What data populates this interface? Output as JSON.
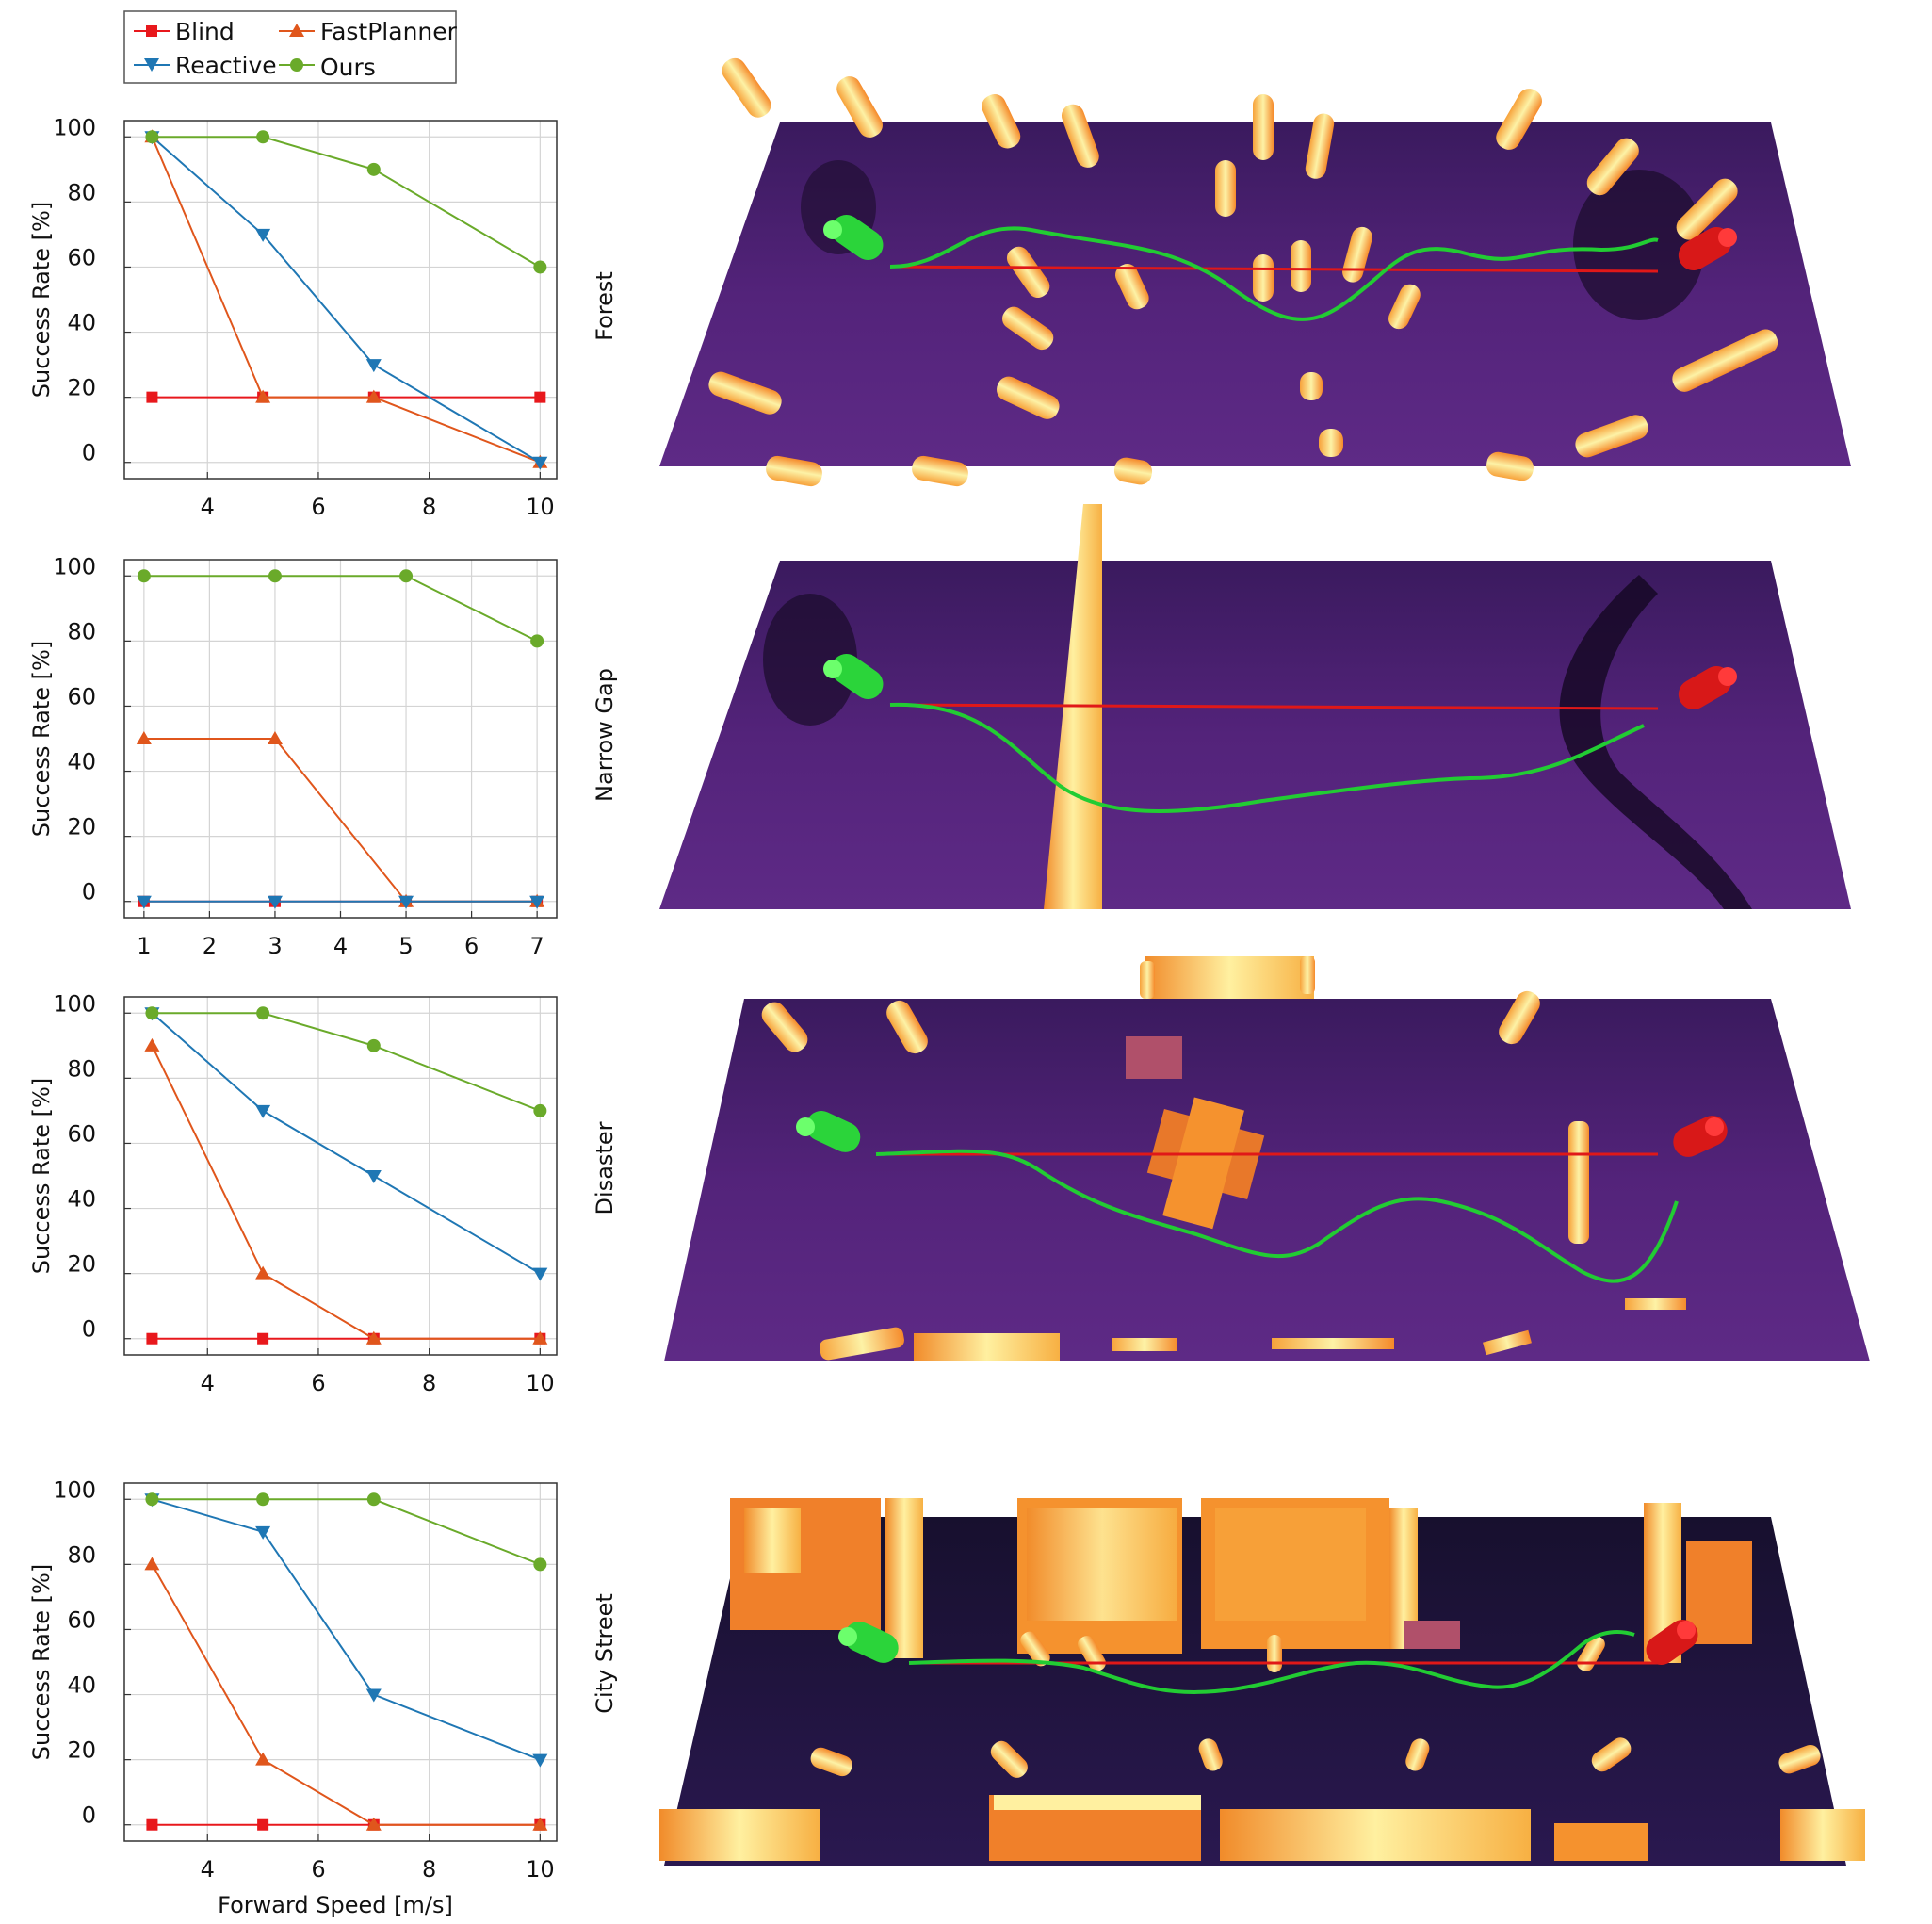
{
  "legend": [
    {
      "name": "Blind",
      "color": "#e8181c",
      "marker": "square"
    },
    {
      "name": "FastPlanner",
      "color": "#e0561c",
      "marker": "triangle-up"
    },
    {
      "name": "Reactive",
      "color": "#1f77b4",
      "marker": "triangle-down"
    },
    {
      "name": "Ours",
      "color": "#6aaa2a",
      "marker": "circle"
    }
  ],
  "shared_xlabel": "Forward Speed [m/s]",
  "chart_data": [
    {
      "type": "line",
      "scene": "Forest",
      "ylabel": "Success Rate [%]",
      "x": [
        3,
        5,
        7,
        10
      ],
      "xticks": [
        4,
        6,
        8,
        10
      ],
      "xlim": [
        2.5,
        10.3
      ],
      "ylim": [
        -5,
        105
      ],
      "yticks": [
        0,
        20,
        40,
        60,
        80,
        100
      ],
      "series": [
        {
          "name": "Blind",
          "values": [
            20,
            20,
            20,
            20
          ]
        },
        {
          "name": "FastPlanner",
          "values": [
            100,
            20,
            20,
            0
          ]
        },
        {
          "name": "Reactive",
          "values": [
            100,
            70,
            30,
            0
          ]
        },
        {
          "name": "Ours",
          "values": [
            100,
            100,
            90,
            60
          ]
        }
      ]
    },
    {
      "type": "line",
      "scene": "Narrow Gap",
      "ylabel": "Success Rate [%]",
      "x": [
        1,
        3,
        5,
        7
      ],
      "xticks": [
        1,
        2,
        3,
        4,
        5,
        6,
        7
      ],
      "xlim": [
        0.7,
        7.3
      ],
      "ylim": [
        -5,
        105
      ],
      "yticks": [
        0,
        20,
        40,
        60,
        80,
        100
      ],
      "series": [
        {
          "name": "Blind",
          "values": [
            0,
            0,
            0,
            0
          ]
        },
        {
          "name": "FastPlanner",
          "values": [
            50,
            50,
            0,
            0
          ]
        },
        {
          "name": "Reactive",
          "values": [
            0,
            0,
            0,
            0
          ]
        },
        {
          "name": "Ours",
          "values": [
            100,
            100,
            100,
            80
          ]
        }
      ]
    },
    {
      "type": "line",
      "scene": "Disaster",
      "ylabel": "Success Rate [%]",
      "x": [
        3,
        5,
        7,
        10
      ],
      "xticks": [
        4,
        6,
        8,
        10
      ],
      "xlim": [
        2.5,
        10.3
      ],
      "ylim": [
        -5,
        105
      ],
      "yticks": [
        0,
        20,
        40,
        60,
        80,
        100
      ],
      "series": [
        {
          "name": "Blind",
          "values": [
            0,
            0,
            0,
            0
          ]
        },
        {
          "name": "FastPlanner",
          "values": [
            90,
            20,
            0,
            0
          ]
        },
        {
          "name": "Reactive",
          "values": [
            100,
            70,
            50,
            20
          ]
        },
        {
          "name": "Ours",
          "values": [
            100,
            100,
            90,
            70
          ]
        }
      ]
    },
    {
      "type": "line",
      "scene": "City Street",
      "ylabel": "Success Rate [%]",
      "x": [
        3,
        5,
        7,
        10
      ],
      "xticks": [
        4,
        6,
        8,
        10
      ],
      "xlim": [
        2.5,
        10.3
      ],
      "ylim": [
        -5,
        105
      ],
      "yticks": [
        0,
        20,
        40,
        60,
        80,
        100
      ],
      "series": [
        {
          "name": "Blind",
          "values": [
            0,
            0,
            0,
            0
          ]
        },
        {
          "name": "FastPlanner",
          "values": [
            80,
            20,
            0,
            0
          ]
        },
        {
          "name": "Reactive",
          "values": [
            100,
            90,
            40,
            20
          ]
        },
        {
          "name": "Ours",
          "values": [
            100,
            100,
            100,
            80
          ]
        }
      ]
    }
  ]
}
